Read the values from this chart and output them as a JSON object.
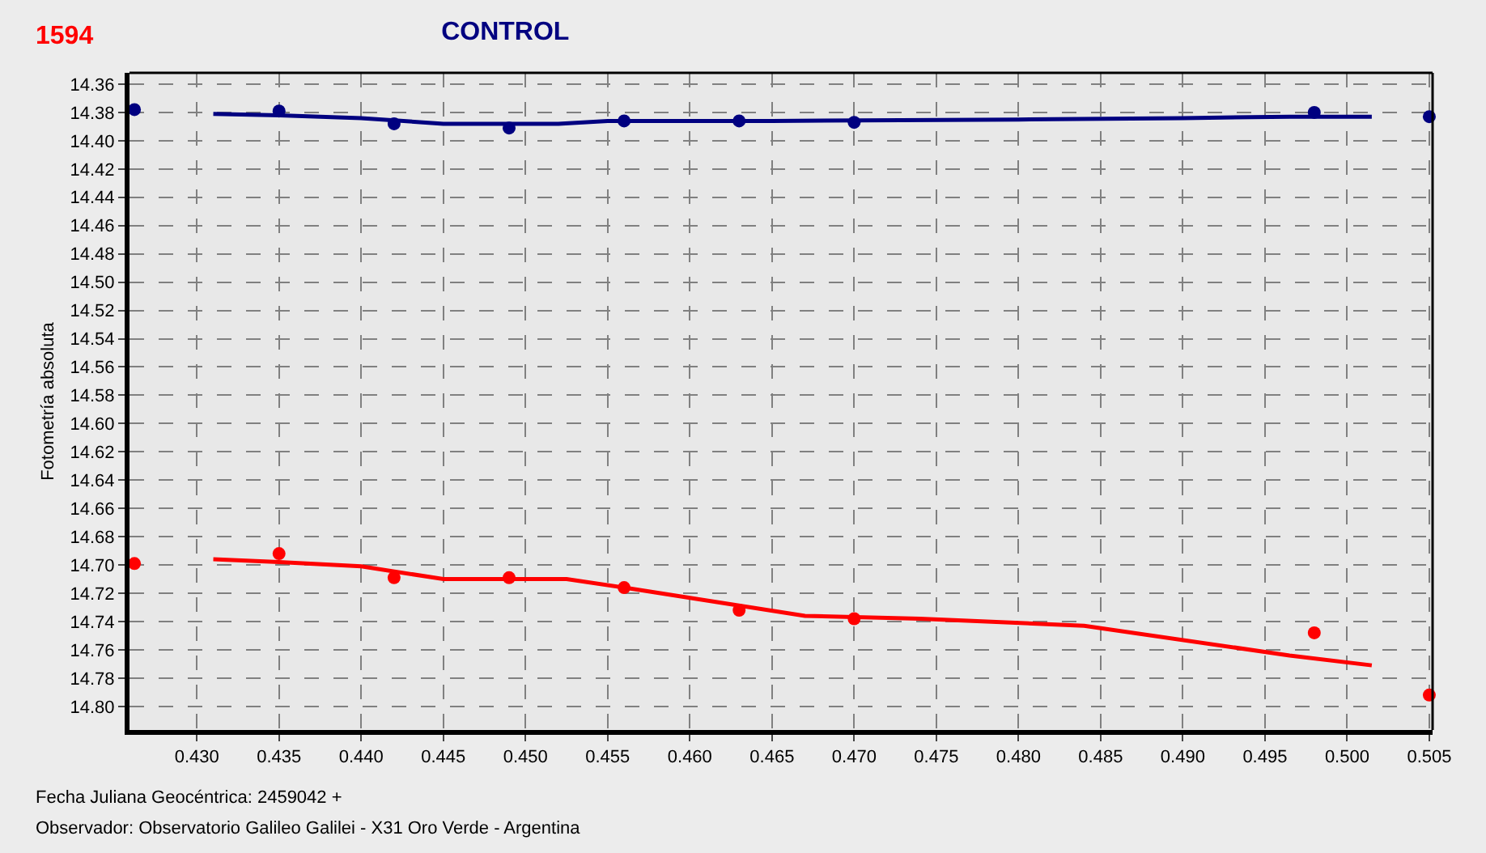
{
  "chart_data": {
    "type": "scatter",
    "title": "CONTROL",
    "subtitle": "1594",
    "ylabel": "Fotometría absoluta",
    "annotations": [
      "Fecha Juliana Geocéntrica: 2459042 +",
      "Observador: Observatorio Galileo Galilei - X31 Oro Verde - Argentina"
    ],
    "xlim": [
      0.4259,
      0.5052
    ],
    "ylim": [
      14.8167,
      14.352
    ],
    "xticks": [
      {
        "value": 0.43,
        "label": "0.430"
      },
      {
        "value": 0.435,
        "label": "0.435"
      },
      {
        "value": 0.44,
        "label": "0.440"
      },
      {
        "value": 0.445,
        "label": "0.445"
      },
      {
        "value": 0.45,
        "label": "0.450"
      },
      {
        "value": 0.455,
        "label": "0.455"
      },
      {
        "value": 0.46,
        "label": "0.460"
      },
      {
        "value": 0.465,
        "label": "0.465"
      },
      {
        "value": 0.47,
        "label": "0.470"
      },
      {
        "value": 0.475,
        "label": "0.475"
      },
      {
        "value": 0.48,
        "label": "0.480"
      },
      {
        "value": 0.485,
        "label": "0.485"
      },
      {
        "value": 0.49,
        "label": "0.490"
      },
      {
        "value": 0.495,
        "label": "0.495"
      },
      {
        "value": 0.5,
        "label": "0.500"
      },
      {
        "value": 0.505,
        "label": "0.505"
      }
    ],
    "yticks": [
      {
        "value": 14.36,
        "label": "14.36"
      },
      {
        "value": 14.38,
        "label": "14.38"
      },
      {
        "value": 14.4,
        "label": "14.40"
      },
      {
        "value": 14.42,
        "label": "14.42"
      },
      {
        "value": 14.44,
        "label": "14.44"
      },
      {
        "value": 14.46,
        "label": "14.46"
      },
      {
        "value": 14.48,
        "label": "14.48"
      },
      {
        "value": 14.5,
        "label": "14.50"
      },
      {
        "value": 14.52,
        "label": "14.52"
      },
      {
        "value": 14.54,
        "label": "14.54"
      },
      {
        "value": 14.56,
        "label": "14.56"
      },
      {
        "value": 14.58,
        "label": "14.58"
      },
      {
        "value": 14.6,
        "label": "14.60"
      },
      {
        "value": 14.62,
        "label": "14.62"
      },
      {
        "value": 14.64,
        "label": "14.64"
      },
      {
        "value": 14.66,
        "label": "14.66"
      },
      {
        "value": 14.68,
        "label": "14.68"
      },
      {
        "value": 14.7,
        "label": "14.70"
      },
      {
        "value": 14.72,
        "label": "14.72"
      },
      {
        "value": 14.74,
        "label": "14.74"
      },
      {
        "value": 14.76,
        "label": "14.76"
      },
      {
        "value": 14.78,
        "label": "14.78"
      },
      {
        "value": 14.8,
        "label": "14.80"
      }
    ],
    "grid": true,
    "marker": "circle",
    "line_style": "solid",
    "series": [
      {
        "type": "scatter",
        "color": "#000080",
        "x": [
          0.4262,
          0.435,
          0.442,
          0.449,
          0.456,
          0.463,
          0.47,
          0.498,
          0.505
        ],
        "values": [
          14.378,
          14.379,
          14.388,
          14.391,
          14.386,
          14.386,
          14.387,
          14.38,
          14.383
        ]
      },
      {
        "type": "line",
        "color": "#000080",
        "marker": "none",
        "x": [
          0.431,
          0.435,
          0.44,
          0.445,
          0.452,
          0.455,
          0.465,
          0.48,
          0.49,
          0.4965,
          0.5015
        ],
        "values": [
          14.381,
          14.382,
          14.384,
          14.388,
          14.388,
          14.386,
          14.386,
          14.385,
          14.384,
          14.383,
          14.383
        ]
      },
      {
        "type": "scatter",
        "color": "#ff0000",
        "x": [
          0.4262,
          0.435,
          0.442,
          0.449,
          0.456,
          0.463,
          0.47,
          0.498,
          0.505
        ],
        "values": [
          14.699,
          14.692,
          14.709,
          14.709,
          14.716,
          14.732,
          14.738,
          14.748,
          14.792
        ]
      },
      {
        "type": "line",
        "color": "#ff0000",
        "marker": "none",
        "x": [
          0.431,
          0.435,
          0.44,
          0.445,
          0.4525,
          0.456,
          0.467,
          0.474,
          0.484,
          0.4965,
          0.5015
        ],
        "values": [
          14.696,
          14.698,
          14.701,
          14.71,
          14.71,
          14.716,
          14.736,
          14.738,
          14.743,
          14.764,
          14.771
        ]
      }
    ]
  }
}
